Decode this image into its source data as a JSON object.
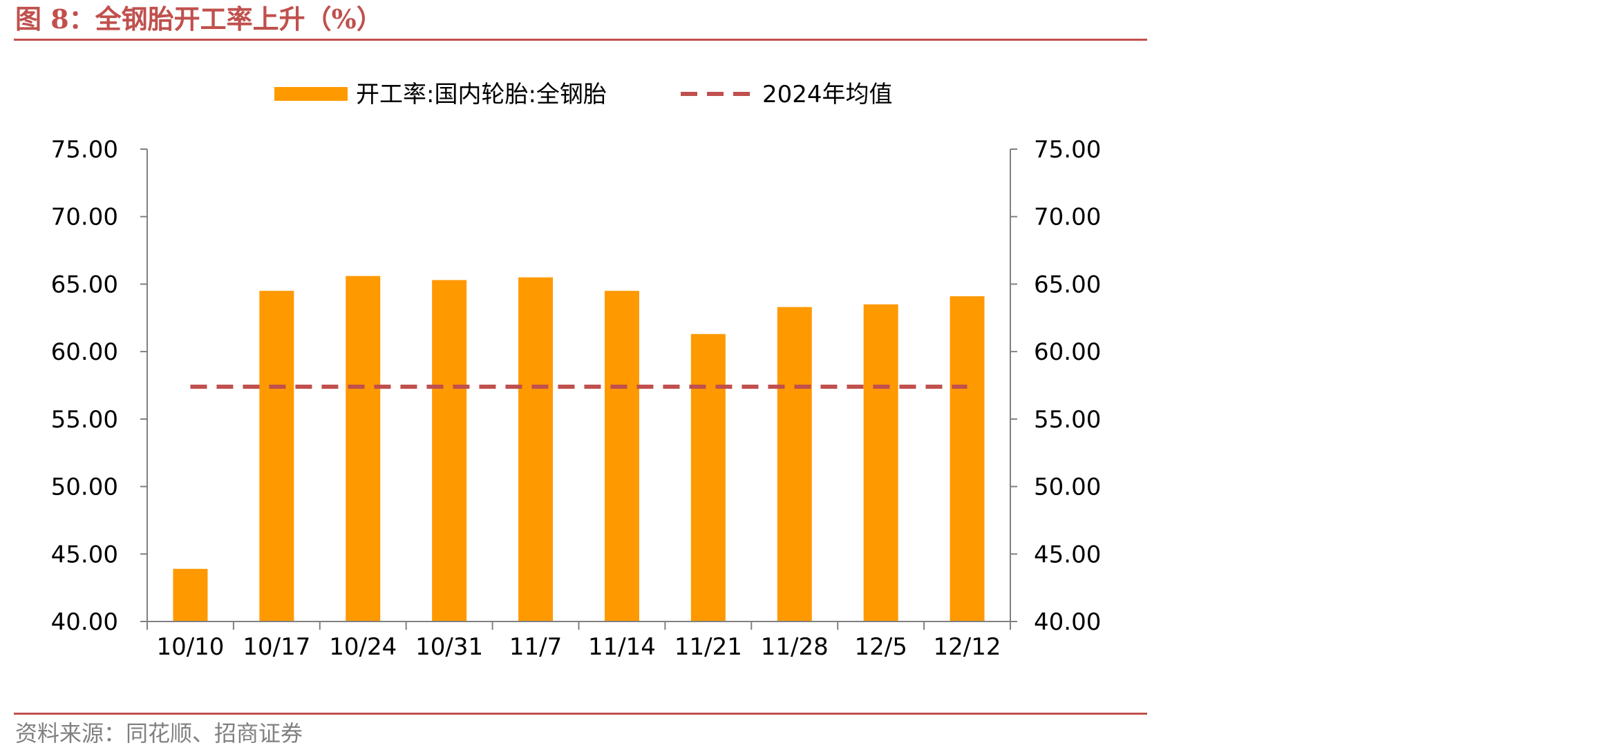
{
  "figure": {
    "title": "图 8：全钢胎开工率上升（%）",
    "source": "资料来源：同花顺、招商证券"
  },
  "colors": {
    "accent": "#c0504d",
    "bar": "#ff9900",
    "avg_line": "#c0504d",
    "axis": "#808080",
    "source_text": "#808080"
  },
  "chart_data": {
    "type": "bar",
    "categories": [
      "10/10",
      "10/17",
      "10/24",
      "10/31",
      "11/7",
      "11/14",
      "11/21",
      "11/28",
      "12/5",
      "12/12"
    ],
    "series": [
      {
        "name": "开工率:国内轮胎:全钢胎",
        "type": "bar",
        "values": [
          43.9,
          64.5,
          65.6,
          65.3,
          65.5,
          64.5,
          61.3,
          63.3,
          63.5,
          64.1
        ]
      },
      {
        "name": "2024年均值",
        "type": "line",
        "style": "dashed",
        "values": [
          57.4,
          57.4,
          57.4,
          57.4,
          57.4,
          57.4,
          57.4,
          57.4,
          57.4,
          57.4
        ]
      }
    ],
    "ylim": [
      40,
      75
    ],
    "yticks": [
      "40.00",
      "45.00",
      "50.00",
      "55.00",
      "60.00",
      "65.00",
      "70.00",
      "75.00"
    ],
    "y2lim": [
      40,
      75
    ],
    "y2ticks": [
      "40.00",
      "45.00",
      "50.00",
      "55.00",
      "60.00",
      "65.00",
      "70.00",
      "75.00"
    ],
    "legend_position": "top-center",
    "grid": false
  }
}
